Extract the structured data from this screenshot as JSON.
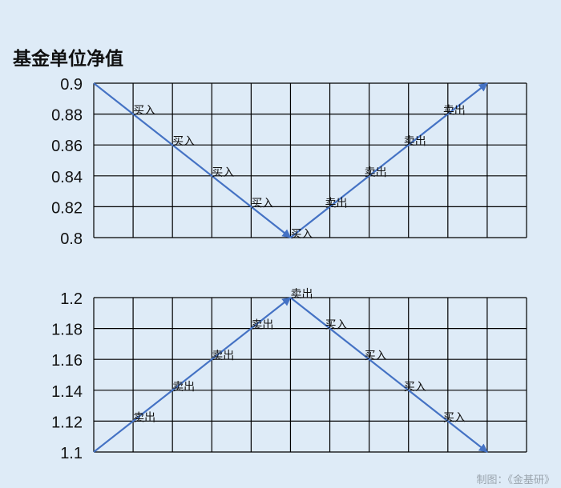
{
  "title": "基金单位净值",
  "credit": "制图：《金基研》",
  "colors": {
    "background": "#deebf7",
    "line": "#4472c4",
    "grid": "#000000"
  },
  "chart_data": [
    {
      "type": "line",
      "ylim": [
        0.8,
        0.9
      ],
      "yticks": [
        "0.9",
        "0.88",
        "0.86",
        "0.84",
        "0.82",
        "0.8"
      ],
      "ytick_values": [
        0.9,
        0.88,
        0.86,
        0.84,
        0.82,
        0.8
      ],
      "x_columns": 11,
      "grid": true,
      "points": [
        [
          0,
          0.9
        ],
        [
          5,
          0.8
        ],
        [
          10,
          0.9
        ]
      ],
      "annotations": [
        {
          "x": 1,
          "y": 0.88,
          "text": "买入"
        },
        {
          "x": 2,
          "y": 0.86,
          "text": "买入"
        },
        {
          "x": 3,
          "y": 0.84,
          "text": "买入"
        },
        {
          "x": 4,
          "y": 0.82,
          "text": "买入"
        },
        {
          "x": 5,
          "y": 0.8,
          "text": "买入"
        },
        {
          "x": 6,
          "y": 0.82,
          "text": "卖出"
        },
        {
          "x": 7,
          "y": 0.84,
          "text": "卖出"
        },
        {
          "x": 8,
          "y": 0.86,
          "text": "卖出"
        },
        {
          "x": 9,
          "y": 0.88,
          "text": "卖出"
        }
      ]
    },
    {
      "type": "line",
      "ylim": [
        1.1,
        1.2
      ],
      "yticks": [
        "1.2",
        "1.18",
        "1.16",
        "1.14",
        "1.12",
        "1.1"
      ],
      "ytick_values": [
        1.2,
        1.18,
        1.16,
        1.14,
        1.12,
        1.1
      ],
      "x_columns": 11,
      "grid": true,
      "points": [
        [
          0,
          1.1
        ],
        [
          5,
          1.2
        ],
        [
          10,
          1.1
        ]
      ],
      "annotations": [
        {
          "x": 1,
          "y": 1.12,
          "text": "卖出"
        },
        {
          "x": 2,
          "y": 1.14,
          "text": "卖出"
        },
        {
          "x": 3,
          "y": 1.16,
          "text": "卖出"
        },
        {
          "x": 4,
          "y": 1.18,
          "text": "卖出"
        },
        {
          "x": 5,
          "y": 1.2,
          "text": "卖出"
        },
        {
          "x": 6,
          "y": 1.18,
          "text": "买入"
        },
        {
          "x": 7,
          "y": 1.16,
          "text": "买入"
        },
        {
          "x": 8,
          "y": 1.14,
          "text": "买入"
        },
        {
          "x": 9,
          "y": 1.12,
          "text": "买入"
        }
      ]
    }
  ]
}
